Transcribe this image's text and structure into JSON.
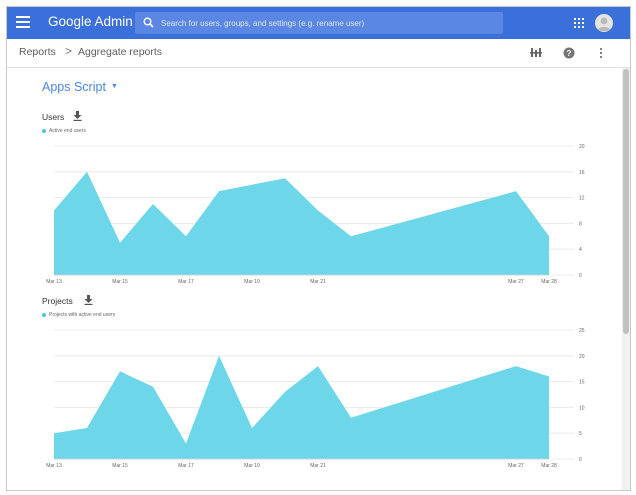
{
  "header": {
    "app_title": "Google Admin",
    "search_placeholder": "Search for users, groups, and settings (e.g. rename user)"
  },
  "breadcrumb": {
    "root": "Reports",
    "separator": ">",
    "current": "Aggregate reports"
  },
  "report": {
    "selected_app": "Apps Script"
  },
  "colors": {
    "topbar": "#3b6fd9",
    "accent": "#4a86e8",
    "area_fill": "#6dd6e9"
  },
  "chart_data": [
    {
      "type": "area",
      "title": "Users",
      "legend": "Active end users",
      "x": [
        "Mar 13",
        "Mar 14",
        "Mar 15",
        "Mar 16",
        "Mar 17",
        "Mar 18",
        "Mar 19",
        "Mar 20",
        "Mar 21",
        "Mar 22",
        "Mar 27",
        "Mar 28"
      ],
      "tick_labels": [
        "Mar 13",
        "Mar 15",
        "Mar 17",
        "Mar 19",
        "Mar 21",
        "Mar 27",
        "Mar 28"
      ],
      "values": [
        10,
        16,
        5,
        11,
        6,
        13,
        15,
        10,
        6,
        13,
        6
      ],
      "x_values": [
        "Mar 13",
        "Mar 14",
        "Mar 15",
        "Mar 16",
        "Mar 17",
        "Mar 18",
        "Mar 20",
        "Mar 21",
        "Mar 22",
        "Mar 27",
        "Mar 28"
      ],
      "ylim": [
        0,
        20
      ],
      "yticks": [
        0,
        4,
        8,
        12,
        16,
        20
      ],
      "grid": true
    },
    {
      "type": "area",
      "title": "Projects",
      "legend": "Projects with active end users",
      "tick_labels": [
        "Mar 13",
        "Mar 15",
        "Mar 17",
        "Mar 19",
        "Mar 21",
        "Mar 27",
        "Mar 28"
      ],
      "x_values": [
        "Mar 13",
        "Mar 14",
        "Mar 15",
        "Mar 16",
        "Mar 17",
        "Mar 18",
        "Mar 19",
        "Mar 20",
        "Mar 21",
        "Mar 22",
        "Mar 27",
        "Mar 28"
      ],
      "values": [
        5,
        6,
        17,
        14,
        3,
        20,
        6,
        13,
        18,
        8,
        18,
        16
      ],
      "ylim": [
        0,
        25
      ],
      "yticks": [
        0,
        5,
        10,
        15,
        20,
        25
      ],
      "grid": true
    }
  ]
}
